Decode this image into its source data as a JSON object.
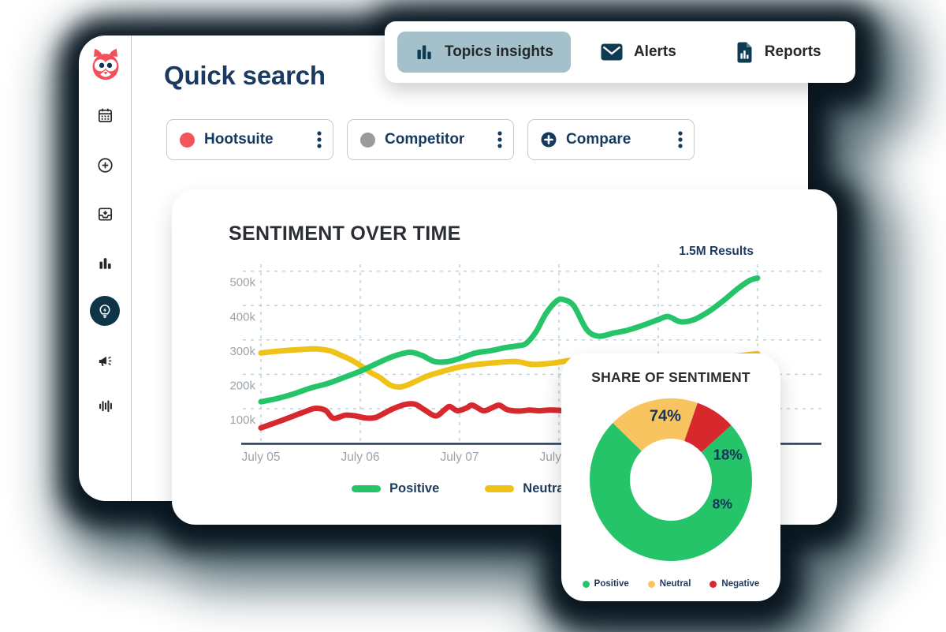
{
  "header": {
    "title": "Quick search"
  },
  "sidebar": {
    "logo_icon": "hootsuite-owl-logo",
    "nav_icons": [
      "calendar-icon",
      "plus-circle-icon",
      "inbox-icon",
      "bar-chart-icon",
      "lightbulb-bolt-icon",
      "megaphone-icon",
      "waveform-icon"
    ],
    "active_icon": "lightbulb-bolt-icon"
  },
  "tabs": [
    {
      "label": "Topics insights",
      "icon": "bar-chart-icon",
      "active": true
    },
    {
      "label": "Alerts",
      "icon": "envelope-icon",
      "active": false
    },
    {
      "label": "Reports",
      "icon": "report-doc-icon",
      "active": false
    }
  ],
  "filters": [
    {
      "label": "Hootsuite",
      "icon": "red-dot",
      "dot_color": "#F4555C"
    },
    {
      "label": "Competitor",
      "icon": "gray-dot",
      "dot_color": "#9B9B9B"
    },
    {
      "label": "Compare",
      "icon": "plus-circle-icon",
      "dot_color": "#16395E"
    }
  ],
  "colors": {
    "navy_text": "#1D3A5F",
    "active_tab_bg": "#A4C1CB",
    "active_nav_circle": "#0D3447",
    "gridline": "#BACFDD",
    "axis_label_gray": "#9CA3A8",
    "shadow_slate": "#4E666E",
    "owl_coral": "#F4505A"
  },
  "chart_data": [
    {
      "type": "line",
      "title": "SENTIMENT OVER TIME",
      "results_label": "1.5M Results",
      "x_tick_labels": [
        "July 05",
        "July 06",
        "July 07",
        "July 08"
      ],
      "x_gridline_count": 6,
      "y_ticks": [
        "100k",
        "200k",
        "300k",
        "400k",
        "500k"
      ],
      "y_range_k": [
        0,
        500
      ],
      "grid": "dashed",
      "legend": [
        "Positive",
        "Neutral"
      ],
      "series": [
        {
          "name": "Negative",
          "color": "#D7282D",
          "points": [
            [
              0,
              44
            ],
            [
              0.23,
              68
            ],
            [
              0.45,
              92
            ],
            [
              0.55,
              101
            ],
            [
              0.65,
              95
            ],
            [
              0.73,
              72
            ],
            [
              0.85,
              81
            ],
            [
              0.95,
              79
            ],
            [
              1.05,
              73
            ],
            [
              1.15,
              74
            ],
            [
              1.25,
              88
            ],
            [
              1.34,
              101
            ],
            [
              1.45,
              112
            ],
            [
              1.55,
              113
            ],
            [
              1.65,
              96
            ],
            [
              1.76,
              79
            ],
            [
              1.85,
              97
            ],
            [
              1.9,
              106
            ],
            [
              1.98,
              94
            ],
            [
              2.07,
              102
            ],
            [
              2.13,
              110
            ],
            [
              2.24,
              94
            ],
            [
              2.33,
              103
            ],
            [
              2.4,
              110
            ],
            [
              2.48,
              97
            ],
            [
              2.6,
              93
            ],
            [
              2.7,
              96
            ],
            [
              2.8,
              94
            ],
            [
              2.9,
              96
            ],
            [
              3,
              95
            ],
            [
              3.2,
              91
            ],
            [
              3.5,
              89
            ],
            [
              4,
              91
            ],
            [
              4.5,
              88
            ],
            [
              5,
              90
            ]
          ]
        },
        {
          "name": "Neutral",
          "color": "#F0C217",
          "points": [
            [
              0,
              262
            ],
            [
              0.2,
              268
            ],
            [
              0.4,
              272
            ],
            [
              0.55,
              274
            ],
            [
              0.7,
              268
            ],
            [
              0.8,
              256
            ],
            [
              0.9,
              243
            ],
            [
              1,
              226
            ],
            [
              1.1,
              206
            ],
            [
              1.2,
              190
            ],
            [
              1.3,
              169
            ],
            [
              1.4,
              163
            ],
            [
              1.5,
              172
            ],
            [
              1.66,
              193
            ],
            [
              1.8,
              206
            ],
            [
              2,
              221
            ],
            [
              2.15,
              228
            ],
            [
              2.33,
              233
            ],
            [
              2.5,
              237
            ],
            [
              2.6,
              236
            ],
            [
              2.72,
              229
            ],
            [
              2.85,
              230
            ],
            [
              3,
              235
            ],
            [
              3.11,
              240
            ],
            [
              3.3,
              235
            ],
            [
              3.6,
              228
            ],
            [
              4,
              231
            ],
            [
              4.4,
              240
            ],
            [
              4.7,
              250
            ],
            [
              5,
              260
            ]
          ]
        },
        {
          "name": "Positive",
          "color": "#26C469",
          "points": [
            [
              0,
              120
            ],
            [
              0.17,
              130
            ],
            [
              0.33,
              143
            ],
            [
              0.5,
              160
            ],
            [
              0.67,
              173
            ],
            [
              0.83,
              190
            ],
            [
              1,
              209
            ],
            [
              1.17,
              232
            ],
            [
              1.34,
              253
            ],
            [
              1.5,
              264
            ],
            [
              1.62,
              255
            ],
            [
              1.75,
              237
            ],
            [
              1.88,
              237
            ],
            [
              2,
              246
            ],
            [
              2.16,
              262
            ],
            [
              2.32,
              269
            ],
            [
              2.45,
              277
            ],
            [
              2.59,
              283
            ],
            [
              2.67,
              290
            ],
            [
              2.77,
              324
            ],
            [
              2.87,
              377
            ],
            [
              2.98,
              414
            ],
            [
              3.05,
              417
            ],
            [
              3.15,
              399
            ],
            [
              3.28,
              330
            ],
            [
              3.4,
              311
            ],
            [
              3.55,
              320
            ],
            [
              3.7,
              329
            ],
            [
              3.85,
              343
            ],
            [
              4,
              359
            ],
            [
              4.1,
              368
            ],
            [
              4.22,
              353
            ],
            [
              4.35,
              358
            ],
            [
              4.5,
              381
            ],
            [
              4.65,
              413
            ],
            [
              4.8,
              449
            ],
            [
              4.92,
              473
            ],
            [
              5,
              480
            ]
          ]
        }
      ]
    },
    {
      "type": "donut",
      "title": "SHARE OF SENTIMENT",
      "start_angle": 48,
      "slices": [
        {
          "label": "Positive",
          "value": 74,
          "color": "#26C469"
        },
        {
          "label": "Neutral",
          "value": 18,
          "color": "#F8C45F"
        },
        {
          "label": "Negative",
          "value": 8,
          "color": "#D7282D"
        }
      ]
    }
  ]
}
